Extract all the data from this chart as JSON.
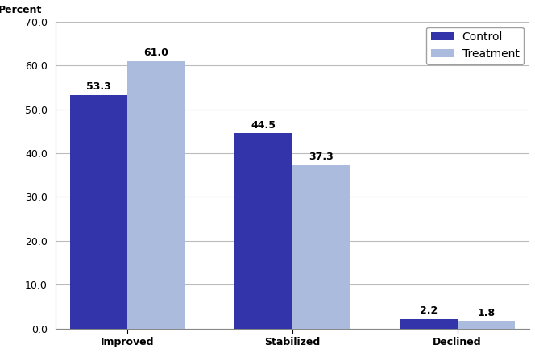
{
  "categories": [
    "Improved",
    "Stabilized",
    "Declined"
  ],
  "control_values": [
    53.3,
    44.5,
    2.2
  ],
  "treatment_values": [
    61.0,
    37.3,
    1.8
  ],
  "control_color": "#3333aa",
  "treatment_color": "#aabbdd",
  "ylabel": "Percent",
  "ylim": [
    0,
    70
  ],
  "yticks": [
    0.0,
    10.0,
    20.0,
    30.0,
    40.0,
    50.0,
    60.0,
    70.0
  ],
  "legend_labels": [
    "Control",
    "Treatment"
  ],
  "bar_width": 0.28,
  "background_color": "#ffffff",
  "grid_color": "#bbbbbb",
  "label_fontsize": 9,
  "tick_fontsize": 9,
  "legend_fontsize": 9,
  "value_fontsize": 9,
  "group_positions": [
    0.35,
    1.15,
    1.95
  ]
}
